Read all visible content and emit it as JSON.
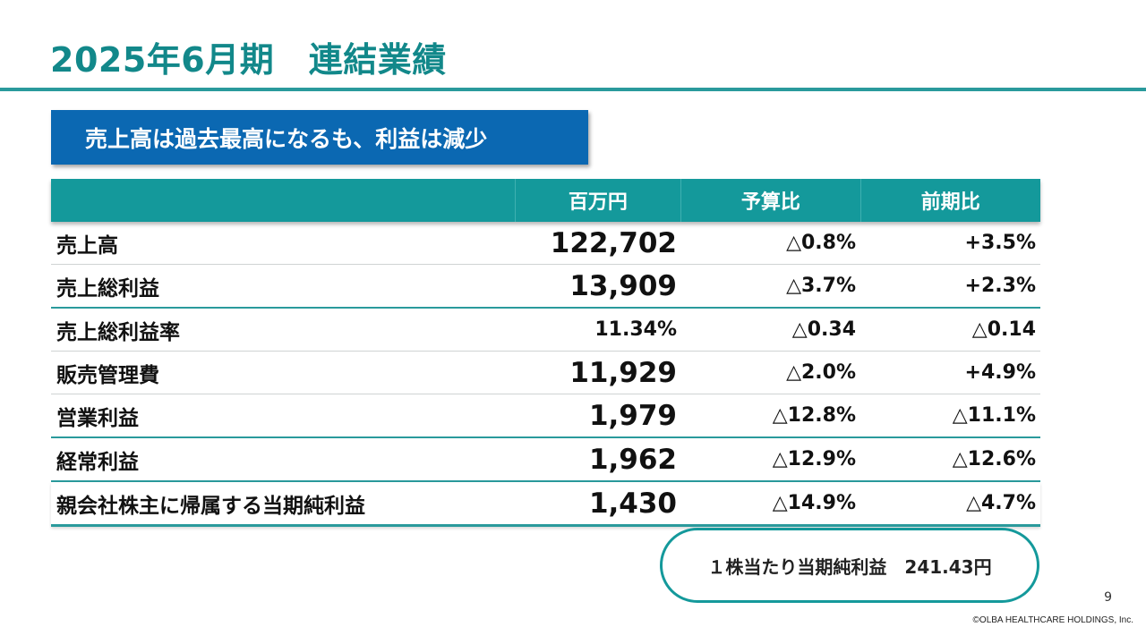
{
  "title": "2025年6月期　連結業績",
  "subtitle": "売上高は過去最高になるも、利益は減少",
  "table": {
    "headers": [
      "",
      "百万円",
      "予算比",
      "前期比"
    ],
    "rows": [
      {
        "label": "売上高",
        "value": "122,702",
        "budget": "△0.8%",
        "yoy": "+3.5%"
      },
      {
        "label": "売上総利益",
        "value": "13,909",
        "budget": "△3.7%",
        "yoy": "+2.3%"
      },
      {
        "label": "売上総利益率",
        "value": "11.34%",
        "budget": "△0.34",
        "yoy": "△0.14"
      },
      {
        "label": "販売管理費",
        "value": "11,929",
        "budget": "△2.0%",
        "yoy": "+4.9%"
      },
      {
        "label": "営業利益",
        "value": "1,979",
        "budget": "△12.8%",
        "yoy": "△11.1%"
      },
      {
        "label": "経常利益",
        "value": "1,962",
        "budget": "△12.9%",
        "yoy": "△12.6%"
      },
      {
        "label": "親会社株主に帰属する当期純利益",
        "value": "1,430",
        "budget": "△14.9%",
        "yoy": "△4.7%"
      }
    ]
  },
  "eps": {
    "text": "１株当たり当期純利益　241.43円"
  },
  "page_number": "9",
  "copyright": "©OLBA HEALTHCARE HOLDINGS, Inc.",
  "colors": {
    "teal": "#14999b",
    "title_teal": "#12888a",
    "blue": "#0b68b2"
  }
}
